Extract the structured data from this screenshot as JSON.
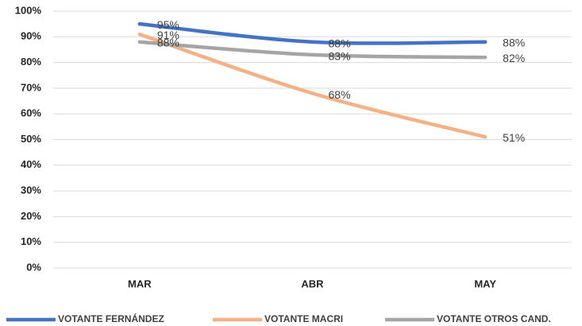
{
  "chart_data": {
    "type": "line",
    "categories": [
      "MAR",
      "ABR",
      "MAY"
    ],
    "series": [
      {
        "name": "VOTANTE FERNÁNDEZ",
        "color": "#4472c4",
        "values": [
          95,
          88,
          88
        ],
        "value_labels": [
          "95%",
          "88%",
          "88%"
        ]
      },
      {
        "name": "VOTANTE MACRI",
        "color": "#f4b183",
        "values": [
          91,
          68,
          51
        ],
        "value_labels": [
          "91%",
          "68%",
          "51%"
        ]
      },
      {
        "name": "VOTANTE OTROS CAND.",
        "color": "#a5a5a5",
        "values": [
          88,
          83,
          82
        ],
        "value_labels": [
          "88%",
          "83%",
          "82%"
        ]
      }
    ],
    "ylim": [
      0,
      100
    ],
    "yticks": [
      {
        "value": 0,
        "label": "0%"
      },
      {
        "value": 10,
        "label": "10%"
      },
      {
        "value": 20,
        "label": "20%"
      },
      {
        "value": 30,
        "label": "30%"
      },
      {
        "value": 40,
        "label": "40%"
      },
      {
        "value": 50,
        "label": "50%"
      },
      {
        "value": 60,
        "label": "60%"
      },
      {
        "value": 70,
        "label": "70%"
      },
      {
        "value": 80,
        "label": "80%"
      },
      {
        "value": 90,
        "label": "90%"
      },
      {
        "value": 100,
        "label": "100%"
      }
    ],
    "grid": true,
    "legend": "bottom"
  }
}
